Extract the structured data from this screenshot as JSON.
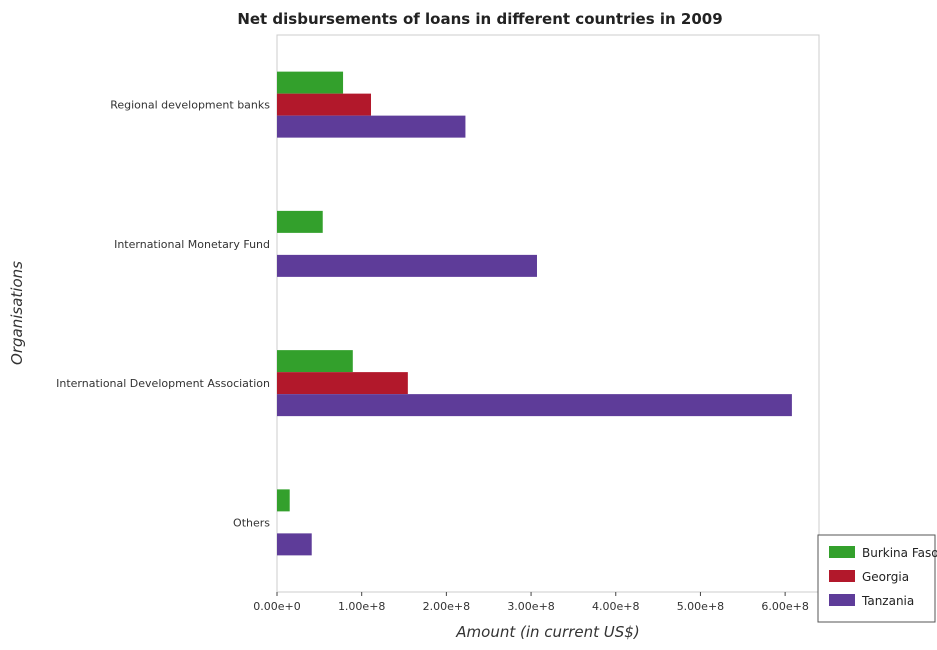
{
  "chart_data": {
    "type": "bar",
    "orientation": "horizontal",
    "title": "Net disbursements of loans in different countries in 2009",
    "xlabel": "Amount (in current US$)",
    "ylabel": "Organisations",
    "categories": [
      "Regional development banks",
      "International Monetary Fund",
      "International Development Association",
      "Others"
    ],
    "series": [
      {
        "name": "Burkina Faso",
        "color": "#33a02c",
        "values": [
          78000000,
          54000000,
          89500000,
          15000000
        ]
      },
      {
        "name": "Georgia",
        "color": "#b2182b",
        "values": [
          111000000,
          0,
          154500000,
          0
        ]
      },
      {
        "name": "Tanzania",
        "color": "#5e3c99",
        "values": [
          222500000,
          307000000,
          608000000,
          41000000
        ]
      }
    ],
    "xlim": [
      0,
      640000000
    ],
    "xticks": [
      0,
      100000000,
      200000000,
      300000000,
      400000000,
      500000000,
      600000000
    ],
    "xtick_labels": [
      "0.00e+0",
      "1.00e+8",
      "2.00e+8",
      "3.00e+8",
      "4.00e+8",
      "5.00e+8",
      "6.00e+8"
    ],
    "grid": false,
    "legend_position": "bottom-right"
  }
}
